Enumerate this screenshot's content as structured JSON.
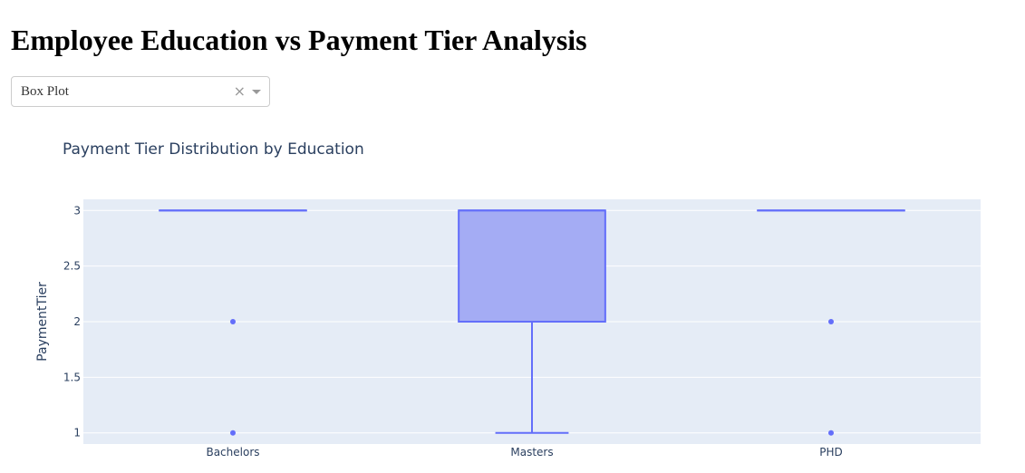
{
  "page": {
    "title": "Employee Education vs Payment Tier Analysis"
  },
  "dropdown": {
    "value": "Box Plot",
    "clear_icon": "×",
    "clear_icon_name": "clear-icon",
    "arrow_icon_name": "chevron-down-icon"
  },
  "chart_data": {
    "type": "box",
    "title": "Payment Tier Distribution by Education",
    "xlabel": "",
    "ylabel": "PaymentTier",
    "ylim": [
      0.9,
      3.1
    ],
    "yticks": [
      1,
      1.5,
      2,
      2.5,
      3
    ],
    "categories": [
      "Bachelors",
      "Masters",
      "PHD"
    ],
    "boxes": [
      {
        "category": "Bachelors",
        "min": 3,
        "q1": 3,
        "median": 3,
        "q3": 3,
        "max": 3,
        "outliers": [
          2,
          1
        ]
      },
      {
        "category": "Masters",
        "min": 1,
        "q1": 2,
        "median": 3,
        "q3": 3,
        "max": 3,
        "outliers": []
      },
      {
        "category": "PHD",
        "min": 3,
        "q1": 3,
        "median": 3,
        "q3": 3,
        "max": 3,
        "outliers": [
          2,
          1
        ]
      }
    ],
    "colors": {
      "box_line": "#636efa",
      "box_fill": "#a4acf4",
      "plot_bg": "#e5ecf6",
      "grid": "#ffffff",
      "text": "#2a3f5f"
    },
    "grid": true
  }
}
